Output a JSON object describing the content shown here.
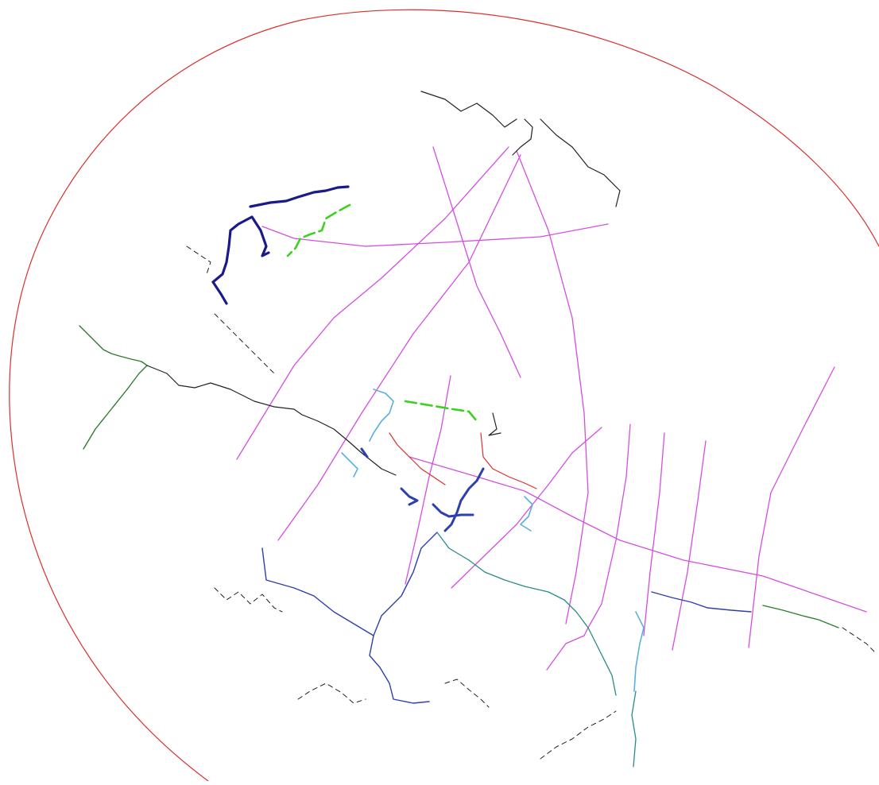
{
  "map": {
    "background": "#ffffff",
    "layers": [
      {
        "name": "boundary",
        "color": "#d9302c"
      },
      {
        "name": "magenta-transects",
        "color": "#d34fe0"
      },
      {
        "name": "dark-navy-route",
        "color": "#1a1a8a"
      },
      {
        "name": "royal-blue-route",
        "color": "#2e3fb0"
      },
      {
        "name": "light-cyan-segments",
        "color": "#5ab0e0"
      },
      {
        "name": "bright-green-dashed",
        "color": "#3ad21e"
      },
      {
        "name": "dark-green-route",
        "color": "#2e7d2e"
      },
      {
        "name": "thin-red-segment",
        "color": "#d9302c"
      },
      {
        "name": "black-outlines",
        "color": "#222222"
      },
      {
        "name": "teal-route",
        "color": "#2a8a8a"
      }
    ]
  }
}
